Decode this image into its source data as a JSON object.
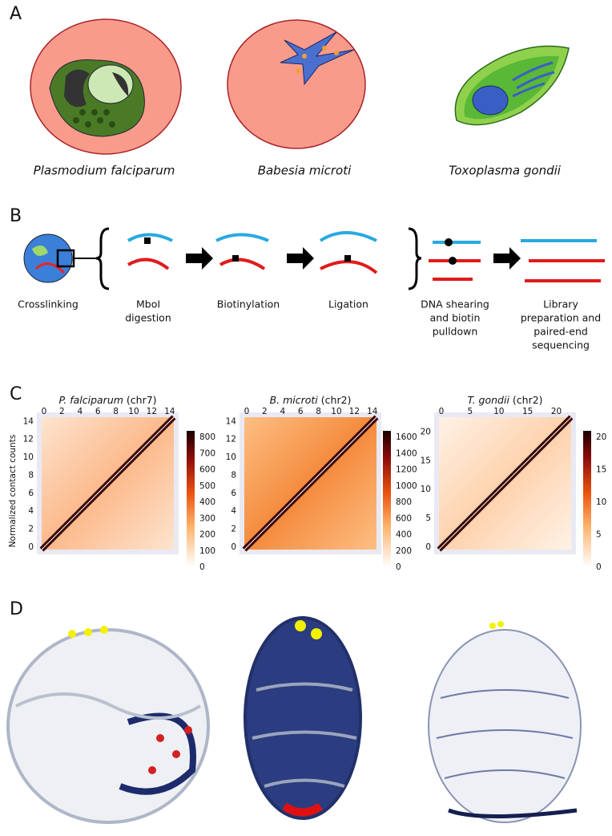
{
  "panel_a": {
    "label": "A",
    "species": [
      "Plasmodium falciparum",
      "Babesia microti",
      "Toxoplasma gondii"
    ]
  },
  "panel_b": {
    "label": "B",
    "steps": [
      {
        "lines": [
          "Crosslinking"
        ]
      },
      {
        "lines": [
          "MboI",
          "digestion"
        ]
      },
      {
        "lines": [
          "Biotinylation"
        ]
      },
      {
        "lines": [
          "Ligation"
        ]
      },
      {
        "lines": [
          "DNA shearing",
          "and biotin",
          "pulldown"
        ]
      },
      {
        "lines": [
          "Library",
          "preparation and",
          "paired-end",
          "sequencing"
        ]
      }
    ]
  },
  "panel_c": {
    "label": "C",
    "y_label": "Normalized contact counts",
    "maps": [
      {
        "species": "P. falciparum",
        "chromosome": "(chr7)",
        "ticks": [
          0,
          2,
          4,
          6,
          8,
          10,
          12,
          14
        ],
        "colorbar": [
          0,
          100,
          200,
          300,
          400,
          500,
          600,
          700,
          800
        ]
      },
      {
        "species": "B. microti",
        "chromosome": "(chr2)",
        "ticks": [
          0,
          2,
          4,
          6,
          8,
          10,
          12,
          14
        ],
        "colorbar": [
          0,
          200,
          400,
          600,
          800,
          1000,
          1200,
          1400,
          1600
        ]
      },
      {
        "species": "T. gondii",
        "chromosome": "(chr2)",
        "ticks": [
          0,
          5,
          10,
          15,
          20
        ],
        "colorbar": [
          0,
          5,
          10,
          15,
          20
        ]
      }
    ]
  },
  "panel_d": {
    "label": "D"
  }
}
